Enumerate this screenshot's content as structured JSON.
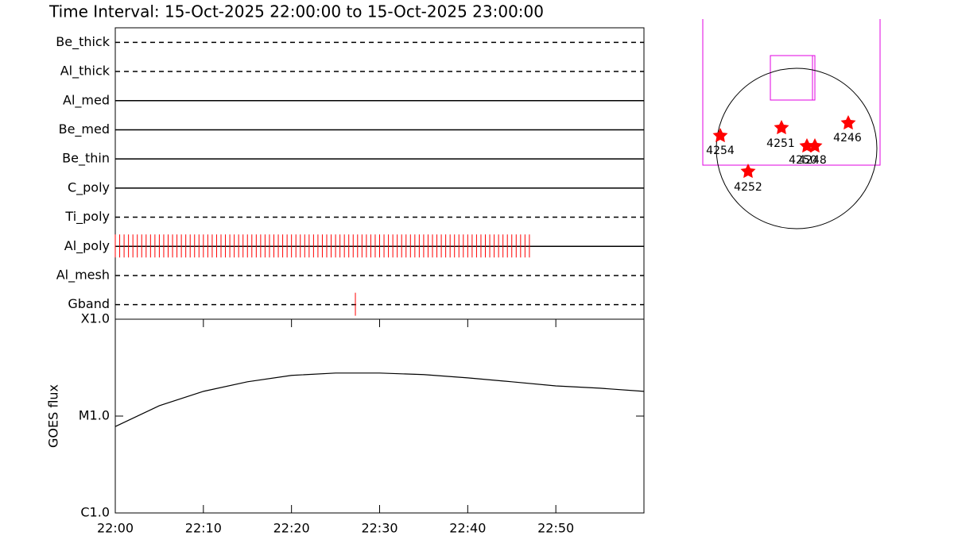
{
  "chart_data": [
    {
      "type": "event",
      "title": "Time Interval: 15-Oct-2025 22:00:00 to 15-Oct-2025 23:00:00",
      "categories": [
        "Be_thick",
        "Al_thick",
        "Al_med",
        "Be_med",
        "Be_thin",
        "C_poly",
        "Ti_poly",
        "Al_poly",
        "Al_mesh",
        "Gband"
      ],
      "line_styles": [
        "dashed",
        "dashed",
        "solid",
        "solid",
        "solid",
        "solid",
        "dashed",
        "solid",
        "dashed",
        "dashed"
      ],
      "color": "#ff0000",
      "xlim": [
        "22:00",
        "23:00"
      ],
      "x": [
        [],
        [],
        [],
        [],
        [],
        [],
        [],
        [
          "22:00:00",
          "22:00:30",
          "22:01:00",
          "22:01:30",
          "22:02:00",
          "22:02:30",
          "22:03:00",
          "22:03:30",
          "22:04:00",
          "22:04:30",
          "22:05:00",
          "22:05:30",
          "22:06:00",
          "22:06:30",
          "22:07:00",
          "22:07:30",
          "22:08:00",
          "22:08:30",
          "22:09:00",
          "22:09:30",
          "22:10:00",
          "22:10:30",
          "22:11:00",
          "22:11:30",
          "22:12:00",
          "22:12:30",
          "22:13:00",
          "22:13:30",
          "22:14:00",
          "22:14:30",
          "22:15:00",
          "22:15:30",
          "22:16:00",
          "22:16:30",
          "22:17:00",
          "22:17:30",
          "22:18:00",
          "22:18:30",
          "22:19:00",
          "22:19:30",
          "22:20:00",
          "22:20:30",
          "22:21:00",
          "22:21:30",
          "22:22:00",
          "22:22:30",
          "22:23:00",
          "22:23:30",
          "22:24:00",
          "22:24:30",
          "22:25:00",
          "22:25:30",
          "22:26:00",
          "22:26:30",
          "22:27:00",
          "22:27:30",
          "22:28:00",
          "22:28:30",
          "22:29:00",
          "22:29:30",
          "22:30:00",
          "22:30:30",
          "22:31:00",
          "22:31:30",
          "22:32:00",
          "22:32:30",
          "22:33:00",
          "22:33:30",
          "22:34:00",
          "22:34:30",
          "22:35:00",
          "22:35:30",
          "22:36:00",
          "22:36:30",
          "22:37:00",
          "22:37:30",
          "22:38:00",
          "22:38:30",
          "22:39:00",
          "22:39:30",
          "22:40:00",
          "22:40:30",
          "22:41:00",
          "22:41:30",
          "22:42:00",
          "22:42:30",
          "22:43:00",
          "22:43:30",
          "22:44:00",
          "22:44:30",
          "22:45:00",
          "22:45:30",
          "22:46:00",
          "22:46:30",
          "22:47:00"
        ],
        [],
        [
          "22:27:15"
        ]
      ]
    },
    {
      "type": "line",
      "y_label": "GOES flux",
      "color": "#000000",
      "log_scale": true,
      "xlim": [
        "22:00",
        "23:00"
      ],
      "xticks": [
        "22:00",
        "22:10",
        "22:20",
        "22:30",
        "22:40",
        "22:50"
      ],
      "ylim": [
        1e-06,
        0.0001
      ],
      "yticks": [
        {
          "value": 1e-06,
          "label": "C1.0"
        },
        {
          "value": 1e-05,
          "label": "M1.0"
        },
        {
          "value": 0.0001,
          "label": "X1.0"
        }
      ],
      "x": [
        "22:00",
        "22:05",
        "22:10",
        "22:15",
        "22:20",
        "22:25",
        "22:30",
        "22:35",
        "22:40",
        "22:45",
        "22:50",
        "22:55",
        "23:00"
      ],
      "values": [
        7.8e-06,
        1.28e-05,
        1.8e-05,
        2.26e-05,
        2.63e-05,
        2.78e-05,
        2.78e-05,
        2.68e-05,
        2.48e-05,
        2.26e-05,
        2.05e-05,
        1.94e-05,
        1.8e-05
      ]
    }
  ],
  "map": {
    "regions": [
      "4254",
      "4251",
      "4250",
      "4248",
      "4246",
      "4252"
    ]
  }
}
